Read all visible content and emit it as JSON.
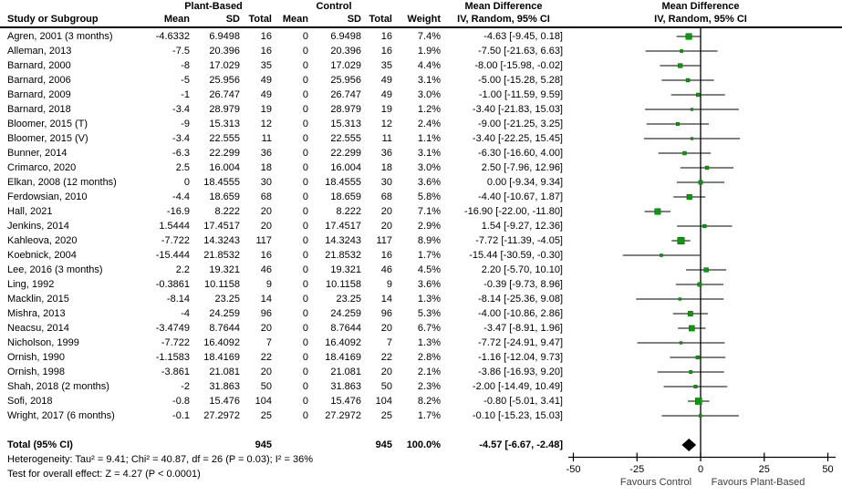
{
  "header": {
    "study_col": "Study or Subgroup",
    "group_plant": "Plant-Based",
    "group_control": "Control",
    "mean": "Mean",
    "sd": "SD",
    "total": "Total",
    "weight": "Weight",
    "md_title": "Mean Difference",
    "md_subtitle": "IV, Random, 95% CI",
    "plot_title": "Mean Difference",
    "plot_subtitle": "IV, Random, 95% CI"
  },
  "rows": [
    {
      "study": "Agren, 2001 (3 months)",
      "m1": "-4.6332",
      "sd1": "6.9498",
      "n1": "16",
      "m2": "0",
      "sd2": "6.9498",
      "n2": "16",
      "w": "7.4%",
      "ci": "-4.63 [-9.45, 0.18]"
    },
    {
      "study": "Alleman, 2013",
      "m1": "-7.5",
      "sd1": "20.396",
      "n1": "16",
      "m2": "0",
      "sd2": "20.396",
      "n2": "16",
      "w": "1.9%",
      "ci": "-7.50 [-21.63, 6.63]"
    },
    {
      "study": "Barnard, 2000",
      "m1": "-8",
      "sd1": "17.029",
      "n1": "35",
      "m2": "0",
      "sd2": "17.029",
      "n2": "35",
      "w": "4.4%",
      "ci": "-8.00 [-15.98, -0.02]"
    },
    {
      "study": "Barnard, 2006",
      "m1": "-5",
      "sd1": "25.956",
      "n1": "49",
      "m2": "0",
      "sd2": "25.956",
      "n2": "49",
      "w": "3.1%",
      "ci": "-5.00 [-15.28, 5.28]"
    },
    {
      "study": "Barnard, 2009",
      "m1": "-1",
      "sd1": "26.747",
      "n1": "49",
      "m2": "0",
      "sd2": "26.747",
      "n2": "49",
      "w": "3.0%",
      "ci": "-1.00 [-11.59, 9.59]"
    },
    {
      "study": "Barnard, 2018",
      "m1": "-3.4",
      "sd1": "28.979",
      "n1": "19",
      "m2": "0",
      "sd2": "28.979",
      "n2": "19",
      "w": "1.2%",
      "ci": "-3.40 [-21.83, 15.03]"
    },
    {
      "study": "Bloomer, 2015 (T)",
      "m1": "-9",
      "sd1": "15.313",
      "n1": "12",
      "m2": "0",
      "sd2": "15.313",
      "n2": "12",
      "w": "2.4%",
      "ci": "-9.00 [-21.25, 3.25]"
    },
    {
      "study": "Bloomer, 2015 (V)",
      "m1": "-3.4",
      "sd1": "22.555",
      "n1": "11",
      "m2": "0",
      "sd2": "22.555",
      "n2": "11",
      "w": "1.1%",
      "ci": "-3.40 [-22.25, 15.45]"
    },
    {
      "study": "Bunner, 2014",
      "m1": "-6.3",
      "sd1": "22.299",
      "n1": "36",
      "m2": "0",
      "sd2": "22.299",
      "n2": "36",
      "w": "3.1%",
      "ci": "-6.30 [-16.60, 4.00]"
    },
    {
      "study": "Crimarco, 2020",
      "m1": "2.5",
      "sd1": "16.004",
      "n1": "18",
      "m2": "0",
      "sd2": "16.004",
      "n2": "18",
      "w": "3.0%",
      "ci": "2.50 [-7.96, 12.96]"
    },
    {
      "study": "Elkan, 2008 (12 months)",
      "m1": "0",
      "sd1": "18.4555",
      "n1": "30",
      "m2": "0",
      "sd2": "18.4555",
      "n2": "30",
      "w": "3.6%",
      "ci": "0.00 [-9.34, 9.34]"
    },
    {
      "study": "Ferdowsian, 2010",
      "m1": "-4.4",
      "sd1": "18.659",
      "n1": "68",
      "m2": "0",
      "sd2": "18.659",
      "n2": "68",
      "w": "5.8%",
      "ci": "-4.40 [-10.67, 1.87]"
    },
    {
      "study": "Hall, 2021",
      "m1": "-16.9",
      "sd1": "8.222",
      "n1": "20",
      "m2": "0",
      "sd2": "8.222",
      "n2": "20",
      "w": "7.1%",
      "ci": "-16.90 [-22.00, -11.80]"
    },
    {
      "study": "Jenkins, 2014",
      "m1": "1.5444",
      "sd1": "17.4517",
      "n1": "20",
      "m2": "0",
      "sd2": "17.4517",
      "n2": "20",
      "w": "2.9%",
      "ci": "1.54 [-9.27, 12.36]"
    },
    {
      "study": "Kahleova, 2020",
      "m1": "-7.722",
      "sd1": "14.3243",
      "n1": "117",
      "m2": "0",
      "sd2": "14.3243",
      "n2": "117",
      "w": "8.9%",
      "ci": "-7.72 [-11.39, -4.05]"
    },
    {
      "study": "Koebnick, 2004",
      "m1": "-15.444",
      "sd1": "21.8532",
      "n1": "16",
      "m2": "0",
      "sd2": "21.8532",
      "n2": "16",
      "w": "1.7%",
      "ci": "-15.44 [-30.59, -0.30]"
    },
    {
      "study": "Lee, 2016 (3 months)",
      "m1": "2.2",
      "sd1": "19.321",
      "n1": "46",
      "m2": "0",
      "sd2": "19.321",
      "n2": "46",
      "w": "4.5%",
      "ci": "2.20 [-5.70, 10.10]"
    },
    {
      "study": "Ling, 1992",
      "m1": "-0.3861",
      "sd1": "10.1158",
      "n1": "9",
      "m2": "0",
      "sd2": "10.1158",
      "n2": "9",
      "w": "3.6%",
      "ci": "-0.39 [-9.73, 8.96]"
    },
    {
      "study": "Macklin, 2015",
      "m1": "-8.14",
      "sd1": "23.25",
      "n1": "14",
      "m2": "0",
      "sd2": "23.25",
      "n2": "14",
      "w": "1.3%",
      "ci": "-8.14 [-25.36, 9.08]"
    },
    {
      "study": "Mishra, 2013",
      "m1": "-4",
      "sd1": "24.259",
      "n1": "96",
      "m2": "0",
      "sd2": "24.259",
      "n2": "96",
      "w": "5.3%",
      "ci": "-4.00 [-10.86, 2.86]"
    },
    {
      "study": "Neacsu, 2014",
      "m1": "-3.4749",
      "sd1": "8.7644",
      "n1": "20",
      "m2": "0",
      "sd2": "8.7644",
      "n2": "20",
      "w": "6.7%",
      "ci": "-3.47 [-8.91, 1.96]"
    },
    {
      "study": "Nicholson, 1999",
      "m1": "-7.722",
      "sd1": "16.4092",
      "n1": "7",
      "m2": "0",
      "sd2": "16.4092",
      "n2": "7",
      "w": "1.3%",
      "ci": "-7.72 [-24.91, 9.47]"
    },
    {
      "study": "Ornish, 1990",
      "m1": "-1.1583",
      "sd1": "18.4169",
      "n1": "22",
      "m2": "0",
      "sd2": "18.4169",
      "n2": "22",
      "w": "2.8%",
      "ci": "-1.16 [-12.04, 9.73]"
    },
    {
      "study": "Ornish, 1998",
      "m1": "-3.861",
      "sd1": "21.081",
      "n1": "20",
      "m2": "0",
      "sd2": "21.081",
      "n2": "20",
      "w": "2.1%",
      "ci": "-3.86 [-16.93, 9.20]"
    },
    {
      "study": "Shah, 2018 (2 months)",
      "m1": "-2",
      "sd1": "31.863",
      "n1": "50",
      "m2": "0",
      "sd2": "31.863",
      "n2": "50",
      "w": "2.3%",
      "ci": "-2.00 [-14.49, 10.49]"
    },
    {
      "study": "Sofi, 2018",
      "m1": "-0.8",
      "sd1": "15.476",
      "n1": "104",
      "m2": "0",
      "sd2": "15.476",
      "n2": "104",
      "w": "8.2%",
      "ci": "-0.80 [-5.01, 3.41]"
    },
    {
      "study": "Wright, 2017 (6 months)",
      "m1": "-0.1",
      "sd1": "27.2972",
      "n1": "25",
      "m2": "0",
      "sd2": "27.2972",
      "n2": "25",
      "w": "1.7%",
      "ci": "-0.10 [-15.23, 15.03]"
    }
  ],
  "total_row": {
    "label": "Total (95% CI)",
    "n1": "945",
    "n2": "945",
    "w": "100.0%",
    "ci": "-4.57 [-6.67, -2.48]"
  },
  "footer": {
    "heterogeneity": "Heterogeneity: Tau² = 9.41; Chi² = 40.87, df = 26 (P = 0.03); I² = 36%",
    "overall_effect": "Test for overall effect: Z = 4.27 (P < 0.0001)"
  },
  "axis": {
    "tick_labels": [
      "-50",
      "-25",
      "0",
      "25",
      "50"
    ],
    "tick_values": [
      -50,
      -25,
      0,
      25,
      50
    ],
    "favours_left": "Favours Control",
    "favours_right": "Favours Plant-Based"
  },
  "colors": {
    "marker_fill": "#00a000",
    "marker_edge": "#006400",
    "line": "#000000",
    "diamond": "#000000",
    "favours_text": "#3d3d3d"
  },
  "chart_data": {
    "type": "scatter",
    "variant": "forest-plot",
    "title": "Mean Difference",
    "model": "IV, Random, 95% CI",
    "studies": [
      "Agren, 2001 (3 months)",
      "Alleman, 2013",
      "Barnard, 2000",
      "Barnard, 2006",
      "Barnard, 2009",
      "Barnard, 2018",
      "Bloomer, 2015 (T)",
      "Bloomer, 2015 (V)",
      "Bunner, 2014",
      "Crimarco, 2020",
      "Elkan, 2008 (12 months)",
      "Ferdowsian, 2010",
      "Hall, 2021",
      "Jenkins, 2014",
      "Kahleova, 2020",
      "Koebnick, 2004",
      "Lee, 2016 (3 months)",
      "Ling, 1992",
      "Macklin, 2015",
      "Mishra, 2013",
      "Neacsu, 2014",
      "Nicholson, 1999",
      "Ornish, 1990",
      "Ornish, 1998",
      "Shah, 2018 (2 months)",
      "Sofi, 2018",
      "Wright, 2017 (6 months)"
    ],
    "estimates": [
      -4.63,
      -7.5,
      -8.0,
      -5.0,
      -1.0,
      -3.4,
      -9.0,
      -3.4,
      -6.3,
      2.5,
      0.0,
      -4.4,
      -16.9,
      1.54,
      -7.72,
      -15.44,
      2.2,
      -0.39,
      -8.14,
      -4.0,
      -3.47,
      -7.72,
      -1.16,
      -3.86,
      -2.0,
      -0.8,
      -0.1
    ],
    "ci_low": [
      -9.45,
      -21.63,
      -15.98,
      -15.28,
      -11.59,
      -21.83,
      -21.25,
      -22.25,
      -16.6,
      -7.96,
      -9.34,
      -10.67,
      -22.0,
      -9.27,
      -11.39,
      -30.59,
      -5.7,
      -9.73,
      -25.36,
      -10.86,
      -8.91,
      -24.91,
      -12.04,
      -16.93,
      -14.49,
      -5.01,
      -15.23
    ],
    "ci_high": [
      0.18,
      6.63,
      -0.02,
      5.28,
      9.59,
      15.03,
      3.25,
      15.45,
      4.0,
      12.96,
      9.34,
      1.87,
      -11.8,
      12.36,
      -4.05,
      -0.3,
      10.1,
      8.96,
      9.08,
      2.86,
      1.96,
      9.47,
      9.73,
      9.2,
      10.49,
      3.41,
      15.03
    ],
    "weights_pct": [
      7.4,
      1.9,
      4.4,
      3.1,
      3.0,
      1.2,
      2.4,
      1.1,
      3.1,
      3.0,
      3.6,
      5.8,
      7.1,
      2.9,
      8.9,
      1.7,
      4.5,
      3.6,
      1.3,
      5.3,
      6.7,
      1.3,
      2.8,
      2.1,
      2.3,
      8.2,
      1.7
    ],
    "total": {
      "estimate": -4.57,
      "ci_low": -6.67,
      "ci_high": -2.48,
      "n_plant": 945,
      "n_control": 945,
      "weight_pct": 100.0
    },
    "xlim": [
      -50,
      50
    ],
    "xticks": [
      -50,
      -25,
      0,
      25,
      50
    ],
    "xlabel_left": "Favours Control",
    "xlabel_right": "Favours Plant-Based"
  }
}
